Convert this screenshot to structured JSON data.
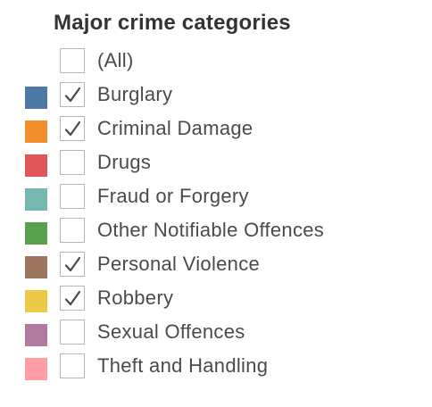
{
  "filter": {
    "title": "Major crime categories",
    "items": [
      {
        "label": "(All)",
        "checked": false,
        "color": null,
        "icon": "empty-checkbox"
      },
      {
        "label": "Burglary",
        "checked": true,
        "color": "#4E79A7",
        "icon": "checkmark"
      },
      {
        "label": "Criminal Damage",
        "checked": true,
        "color": "#F28E2B",
        "icon": "checkmark"
      },
      {
        "label": "Drugs",
        "checked": false,
        "color": "#E15759",
        "icon": "empty-checkbox"
      },
      {
        "label": "Fraud or Forgery",
        "checked": false,
        "color": "#76B7B2",
        "icon": "empty-checkbox"
      },
      {
        "label": "Other Notifiable Offences",
        "checked": false,
        "color": "#59A14F",
        "icon": "empty-checkbox"
      },
      {
        "label": "Personal Violence",
        "checked": true,
        "color": "#9C755F",
        "icon": "checkmark"
      },
      {
        "label": "Robbery",
        "checked": true,
        "color": "#EDC948",
        "icon": "checkmark"
      },
      {
        "label": "Sexual Offences",
        "checked": false,
        "color": "#B07AA1",
        "icon": "empty-checkbox"
      },
      {
        "label": "Theft and Handling",
        "checked": false,
        "color": "#FF9DA7",
        "icon": "empty-checkbox"
      }
    ]
  }
}
